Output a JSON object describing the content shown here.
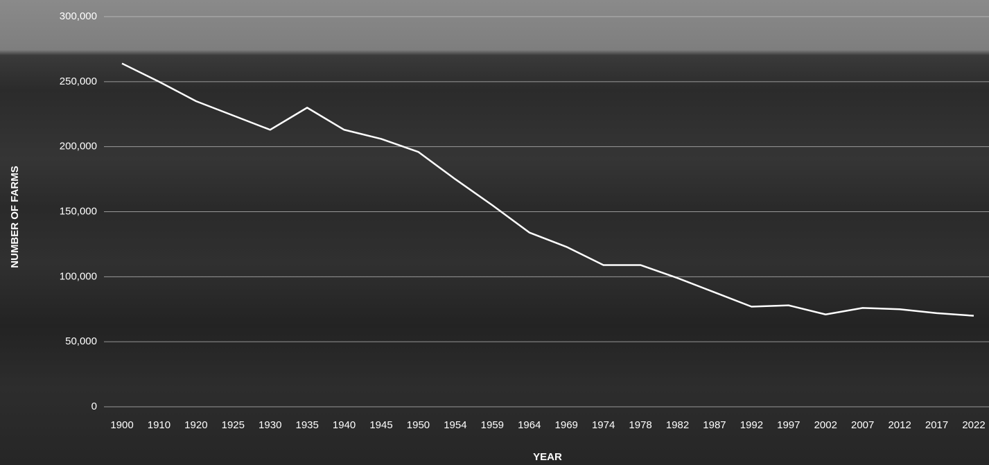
{
  "chart_data": {
    "type": "line",
    "x_label": "YEAR",
    "y_label": "NUMBER OF FARMS",
    "categories": [
      "1900",
      "1910",
      "1920",
      "1925",
      "1930",
      "1935",
      "1940",
      "1945",
      "1950",
      "1954",
      "1959",
      "1964",
      "1969",
      "1974",
      "1978",
      "1982",
      "1987",
      "1992",
      "1997",
      "2002",
      "2007",
      "2012",
      "2017",
      "2022"
    ],
    "series": [
      {
        "color": "#ffffff",
        "values": [
          264000,
          250000,
          235000,
          224000,
          213000,
          230000,
          213000,
          206000,
          196000,
          175000,
          155000,
          134000,
          123000,
          109000,
          109000,
          99000,
          88000,
          77000,
          78000,
          71000,
          76000,
          75000,
          72000,
          70000
        ]
      }
    ],
    "ylim": [
      0,
      300000
    ],
    "yticks": [
      {
        "value": 0,
        "label": "0"
      },
      {
        "value": 50000,
        "label": "50,000"
      },
      {
        "value": 100000,
        "label": "100,000"
      },
      {
        "value": 150000,
        "label": "150,000"
      },
      {
        "value": 200000,
        "label": "200,000"
      },
      {
        "value": 250000,
        "label": "250,000"
      },
      {
        "value": 300000,
        "label": "300,000"
      }
    ],
    "grid": true
  }
}
